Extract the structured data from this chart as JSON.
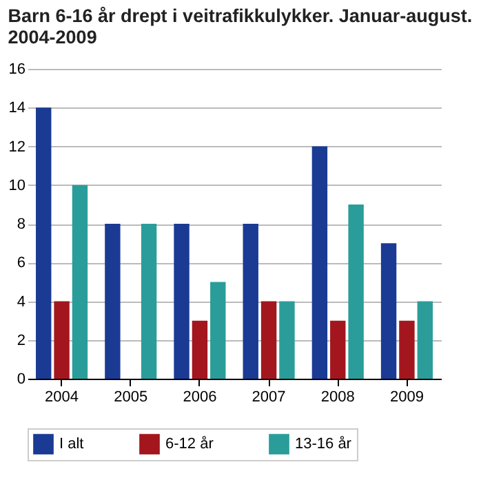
{
  "chart_data": {
    "type": "bar",
    "title": "Barn 6-16 år drept i veitrafikkulykker. Januar-august. 2004-2009",
    "categories": [
      "2004",
      "2005",
      "2006",
      "2007",
      "2008",
      "2009"
    ],
    "series": [
      {
        "name": "I alt",
        "color": "#1a3a94",
        "values": [
          14,
          8,
          8,
          8,
          12,
          7
        ]
      },
      {
        "name": "6-12 år",
        "color": "#a3161e",
        "values": [
          4,
          0,
          3,
          4,
          3,
          3
        ]
      },
      {
        "name": "13-16 år",
        "color": "#2a9d9a",
        "values": [
          10,
          8,
          5,
          4,
          9,
          4
        ]
      }
    ],
    "ylim": [
      0,
      16
    ],
    "yticks": [
      0,
      2,
      4,
      6,
      8,
      10,
      12,
      14,
      16
    ],
    "grid": "y",
    "legend": "bottom"
  }
}
